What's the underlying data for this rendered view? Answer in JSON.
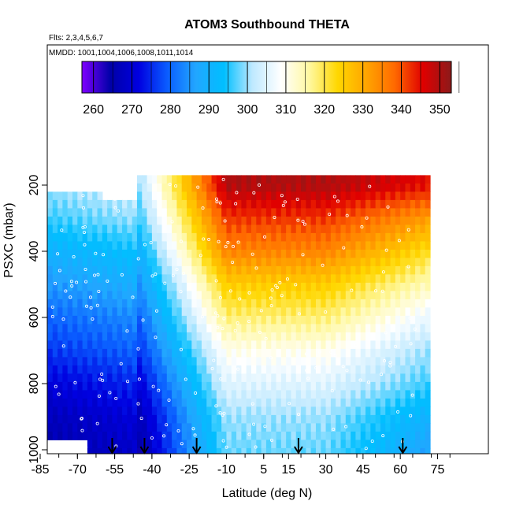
{
  "chart_data": {
    "type": "heatmap",
    "title": "ATOM3 Southbound THETA",
    "subtitle_flights": "Flts: 2,3,4,5,6,7",
    "subtitle_dates": "MMDD: 1001,1004,1006,1008,1011,1014",
    "xlabel": "Latitude (deg N)",
    "ylabel": "PSXC (mbar)",
    "xlim": [
      -85,
      85
    ],
    "ylim": [
      1010,
      60
    ],
    "y_reversed": true,
    "x_ticks": [
      -85,
      -70,
      -55,
      -40,
      -25,
      -10,
      5,
      15,
      30,
      45,
      60,
      75
    ],
    "x_tick_labels": [
      "-85",
      "-70",
      "-55",
      "-40",
      "-25",
      "-10",
      "5",
      "15",
      "30",
      "45",
      "60",
      "75"
    ],
    "y_ticks": [
      200,
      400,
      600,
      800,
      1000
    ],
    "y_tick_labels": [
      "200",
      "400",
      "600",
      "800",
      "1000"
    ],
    "colorbar": {
      "min": 257,
      "max": 353,
      "ticks": [
        260,
        270,
        280,
        290,
        300,
        310,
        320,
        330,
        340,
        350
      ],
      "tick_labels": [
        "260",
        "270",
        "280",
        "290",
        "300",
        "310",
        "320",
        "330",
        "340",
        "350"
      ],
      "colors": [
        "#7f00ff",
        "#0000a8",
        "#0000e0",
        "#0a5cff",
        "#22a6ff",
        "#00bfff",
        "#bfe9ff",
        "#ffffff",
        "#fff8a0",
        "#ffd700",
        "#ffa500",
        "#ff6a00",
        "#e00000",
        "#8b1a1a"
      ]
    },
    "profile_latitudes": [
      -56,
      -43,
      -22,
      19,
      61
    ],
    "field": {
      "lat_extent": [
        -82,
        72
      ],
      "p_extent": [
        170,
        1010
      ],
      "bands": [
        {
          "p": 200,
          "theta_south": 300,
          "theta_tropics": 350,
          "theta_north": 345
        },
        {
          "p": 300,
          "theta_south": 296,
          "theta_tropics": 342,
          "theta_north": 332
        },
        {
          "p": 400,
          "theta_south": 290,
          "theta_tropics": 335,
          "theta_north": 322
        },
        {
          "p": 500,
          "theta_south": 285,
          "theta_tropics": 325,
          "theta_north": 314
        },
        {
          "p": 600,
          "theta_south": 280,
          "theta_tropics": 318,
          "theta_north": 306
        },
        {
          "p": 700,
          "theta_south": 276,
          "theta_tropics": 310,
          "theta_north": 300
        },
        {
          "p": 800,
          "theta_south": 271,
          "theta_tropics": 305,
          "theta_north": 296
        },
        {
          "p": 900,
          "theta_south": 267,
          "theta_tropics": 300,
          "theta_north": 290
        },
        {
          "p": 1000,
          "theta_south": 265,
          "theta_tropics": 298,
          "theta_north": 286
        }
      ]
    }
  }
}
